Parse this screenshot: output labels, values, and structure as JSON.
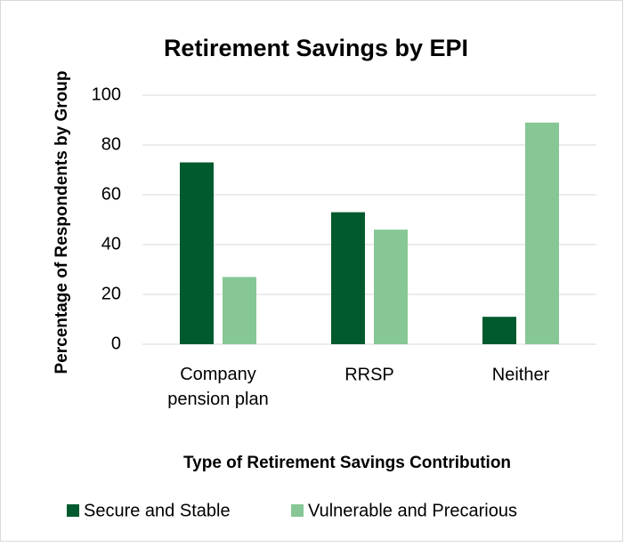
{
  "chart_data": {
    "type": "bar",
    "title": "Retirement Savings by EPI",
    "x_label": "Type of Retirement Savings Contribution",
    "y_label": "Percentage of Respondents by Group",
    "categories": [
      "Company pension plan",
      "RRSP",
      "Neither"
    ],
    "series": [
      {
        "name": "Secure and Stable",
        "color": "#005a2d",
        "values": [
          73,
          53,
          11
        ]
      },
      {
        "name": "Vulnerable and Precarious",
        "color": "#86c795",
        "values": [
          27,
          46,
          89
        ]
      }
    ],
    "ylim": [
      0,
      100
    ],
    "yticks": [
      0,
      20,
      40,
      60,
      80,
      100
    ],
    "grid": true,
    "legend": "bottom"
  }
}
